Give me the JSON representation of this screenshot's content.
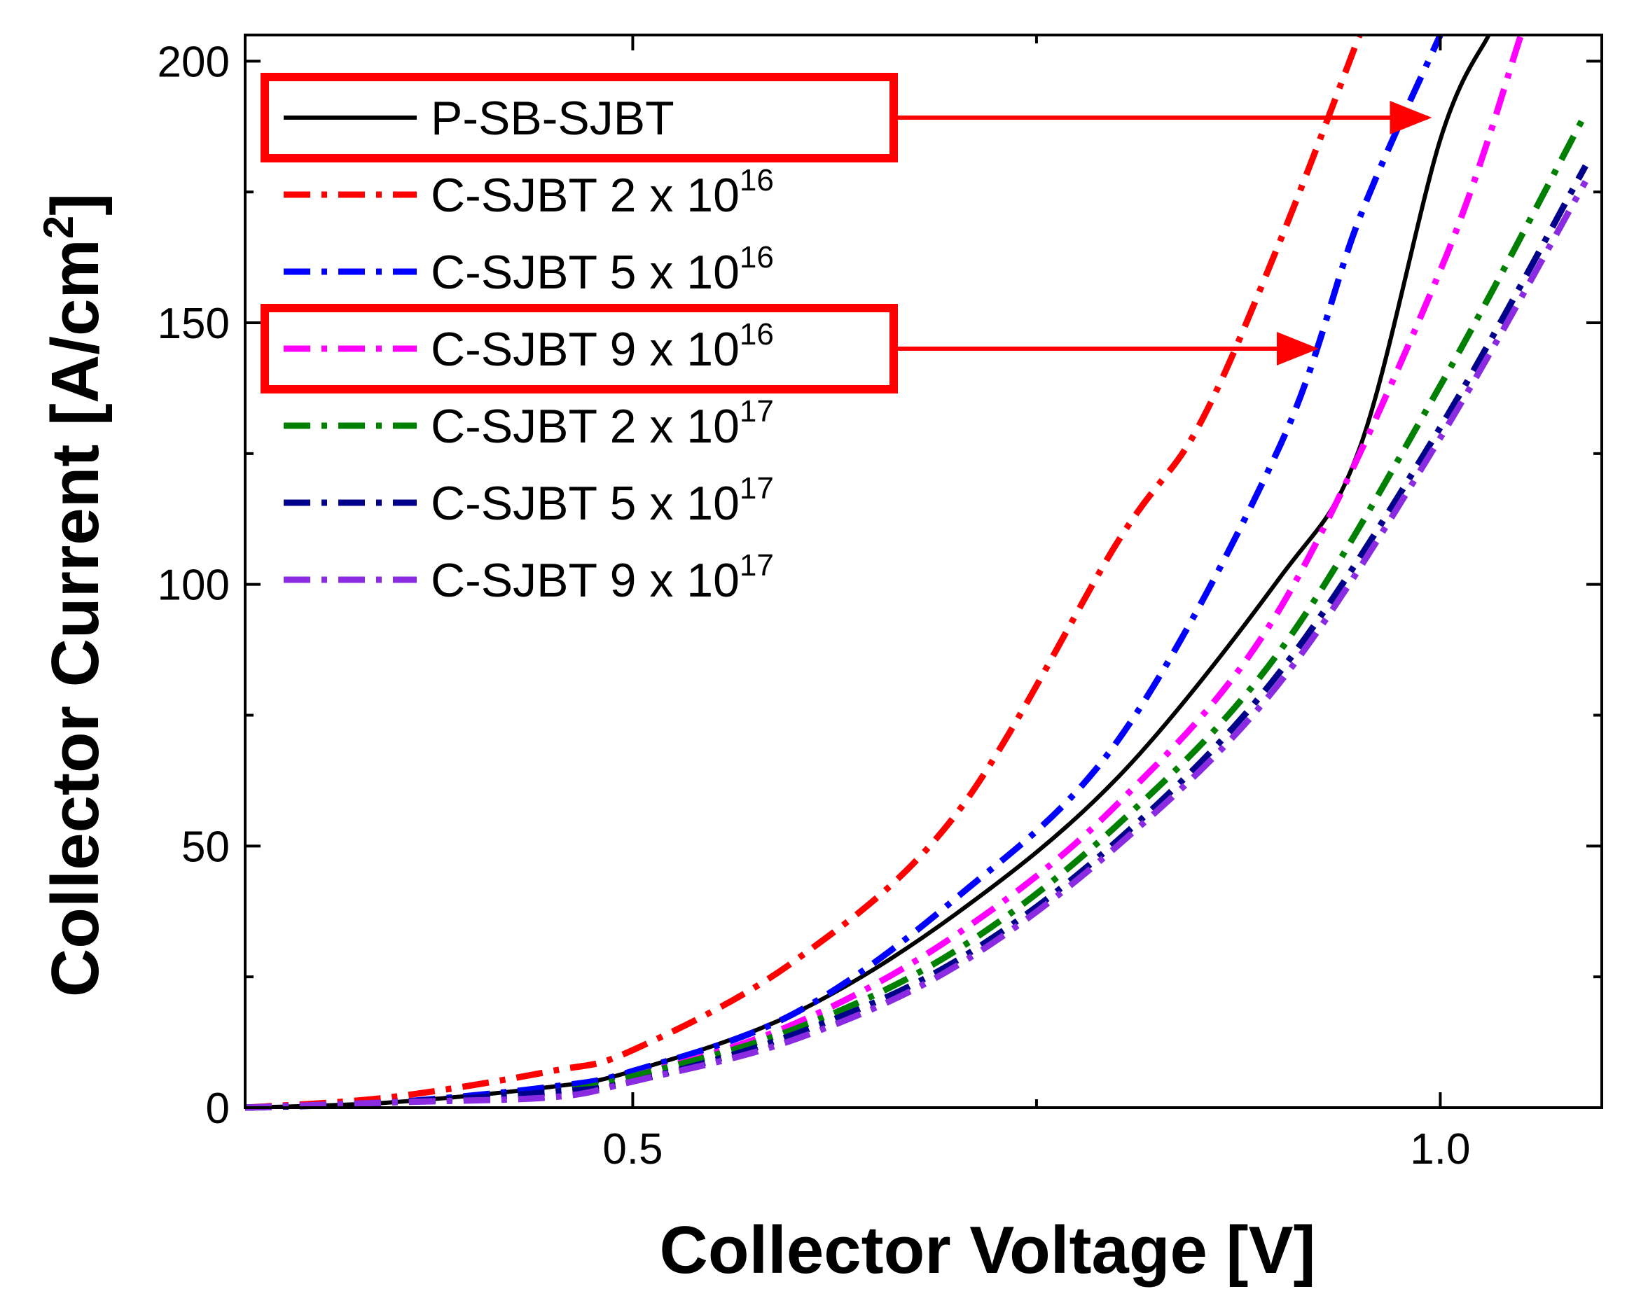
{
  "chart_data": {
    "type": "line",
    "title": "",
    "xlabel": "Collector Voltage [V]",
    "ylabel_main": "Collector Current [A/cm",
    "ylabel_sup": "2",
    "ylabel_end": "]",
    "xlim": [
      0.26,
      1.1
    ],
    "ylim": [
      0,
      205
    ],
    "xticks": [
      0.5,
      1.0
    ],
    "xtick_labels": [
      "0.5",
      "1.0"
    ],
    "xticks_minor": [
      0.75
    ],
    "yticks": [
      0,
      50,
      100,
      150,
      200
    ],
    "ytick_labels": [
      "0",
      "50",
      "100",
      "150",
      "200"
    ],
    "yticks_minor": [
      25,
      75,
      125,
      175
    ],
    "legend_position": "top-left",
    "series": [
      {
        "name": "P-SB-SJBT",
        "label_main": "P-SB-SJBT",
        "label_exp": "",
        "color": "#000000",
        "style": "solid",
        "highlighted": true,
        "x": [
          0.26,
          0.35,
          0.45,
          0.5,
          0.6,
          0.7,
          0.8,
          0.9,
          0.95,
          1.0,
          1.03
        ],
        "y": [
          0,
          1,
          4,
          7,
          18,
          37,
          63,
          101,
          126,
          185,
          205
        ]
      },
      {
        "name": "C-SJBT 2 x 10^16",
        "label_main": "C-SJBT  2 x 10",
        "label_exp": "16",
        "color": "#ff0000",
        "style": "dashdot",
        "highlighted": false,
        "x": [
          0.26,
          0.35,
          0.45,
          0.5,
          0.6,
          0.7,
          0.8,
          0.85,
          0.9,
          0.95
        ],
        "y": [
          0,
          2,
          7,
          11,
          28,
          56,
          108,
          130,
          165,
          205
        ]
      },
      {
        "name": "C-SJBT 5 x 10^16",
        "label_main": "C-SJBT  5 x 10",
        "label_exp": "16",
        "color": "#0000ff",
        "style": "dashdot",
        "highlighted": false,
        "x": [
          0.26,
          0.35,
          0.45,
          0.5,
          0.6,
          0.7,
          0.8,
          0.9,
          0.95,
          1.0
        ],
        "y": [
          0,
          1,
          4,
          7,
          18,
          40,
          70,
          126,
          170,
          205
        ]
      },
      {
        "name": "C-SJBT 9 x 10^16",
        "label_main": "C-SJBT  9 x 10",
        "label_exp": "16",
        "color": "#ff00ff",
        "style": "dashdot",
        "highlighted": true,
        "x": [
          0.26,
          0.35,
          0.45,
          0.5,
          0.6,
          0.7,
          0.8,
          0.9,
          1.0,
          1.05
        ],
        "y": [
          0,
          1,
          3,
          6,
          16,
          33,
          58,
          95,
          160,
          205
        ]
      },
      {
        "name": "C-SJBT 2 x 10^17",
        "label_main": "C-SJBT  2 x 10",
        "label_exp": "17",
        "color": "#008000",
        "style": "dashdot",
        "highlighted": false,
        "x": [
          0.26,
          0.35,
          0.45,
          0.5,
          0.6,
          0.7,
          0.8,
          0.9,
          1.0,
          1.09
        ],
        "y": [
          0,
          1,
          3,
          6,
          15,
          30,
          54,
          87,
          138,
          190
        ]
      },
      {
        "name": "C-SJBT 5 x 10^17",
        "label_main": "C-SJBT  5 x 10",
        "label_exp": "17",
        "color": "#00008b",
        "style": "dashdot",
        "highlighted": false,
        "x": [
          0.26,
          0.35,
          0.45,
          0.5,
          0.6,
          0.7,
          0.8,
          0.9,
          1.0,
          1.09
        ],
        "y": [
          0,
          1,
          3,
          5,
          14,
          28,
          51,
          83,
          130,
          180
        ]
      },
      {
        "name": "C-SJBT 9 x 10^17",
        "label_main": "C-SJBT  9 x 10",
        "label_exp": "17",
        "color": "#8a2be2",
        "style": "dashdot",
        "highlighted": false,
        "x": [
          0.26,
          0.35,
          0.45,
          0.5,
          0.6,
          0.7,
          0.8,
          0.9,
          1.0,
          1.09
        ],
        "y": [
          0,
          1,
          2,
          5,
          13,
          27,
          50,
          81,
          128,
          177
        ]
      }
    ],
    "annotations": [
      {
        "from_series": "P-SB-SJBT",
        "to_x": 1.0,
        "to_y": 190,
        "color": "#ff0000"
      },
      {
        "from_series": "C-SJBT 9 x 10^16",
        "to_x": 0.93,
        "to_y": 145,
        "color": "#ff0000"
      }
    ]
  }
}
